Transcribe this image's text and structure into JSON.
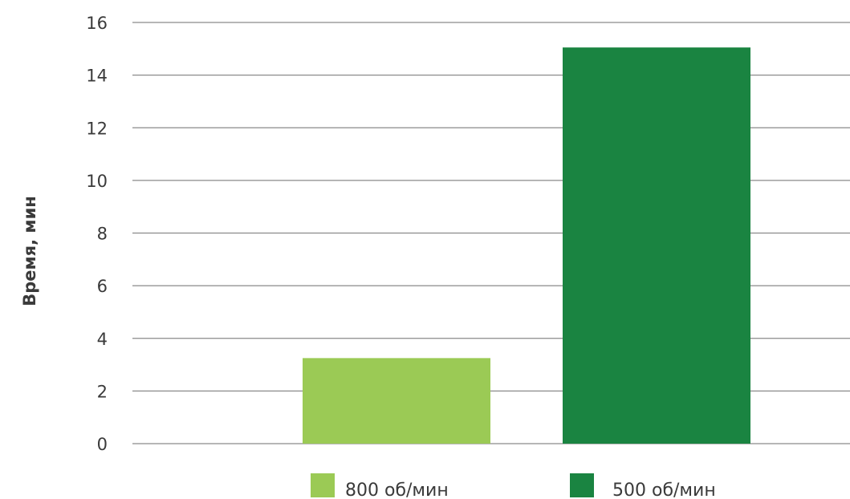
{
  "chart_data": {
    "type": "bar",
    "ylabel": "Время, мин",
    "ylim": [
      0,
      16
    ],
    "yticks": [
      0,
      2,
      4,
      6,
      8,
      10,
      12,
      14,
      16
    ],
    "grid": true,
    "legend_position": "bottom",
    "series": [
      {
        "name": "800 об/мин",
        "value": 3.25,
        "color": "#9bca55"
      },
      {
        "name": "500 об/мин",
        "value": 15.05,
        "color": "#1a8441"
      }
    ]
  }
}
